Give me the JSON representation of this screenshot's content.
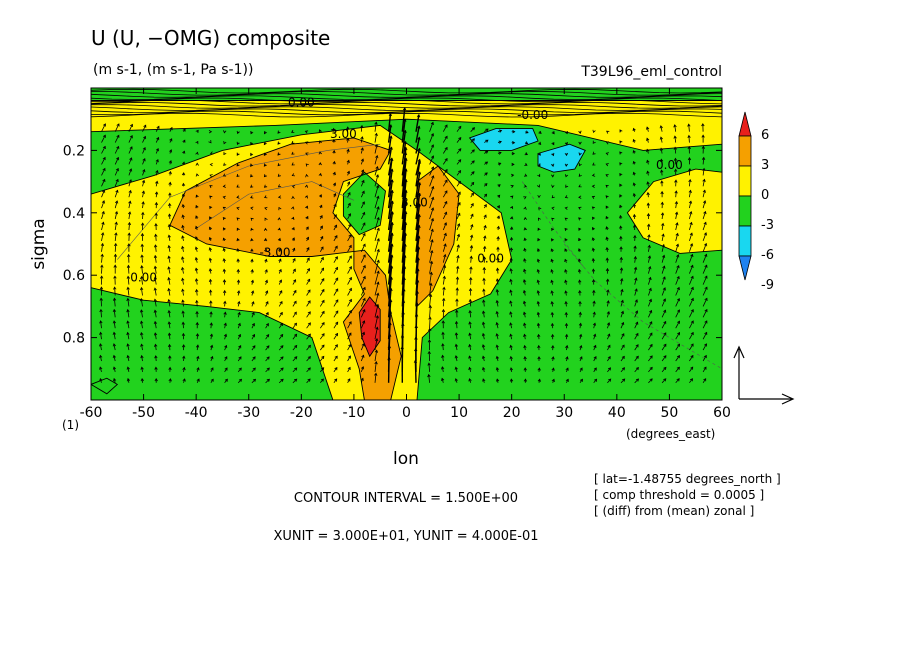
{
  "chart_data": {
    "type": "contour",
    "title": "U (U, −OMG) composite",
    "units": "(m s-1, (m s-1, Pa s-1))",
    "run_label": "T39L96_eml_control",
    "xlabel": "lon",
    "xunits": "(degrees_east)",
    "ylabel": "sigma",
    "axis_note": "(1)",
    "x_ticks": [
      -60,
      -50,
      -40,
      -30,
      -20,
      -10,
      0,
      10,
      20,
      30,
      40,
      50,
      60
    ],
    "y_ticks": [
      0.2,
      0.4,
      0.6,
      0.8
    ],
    "xlim": [
      -60,
      60
    ],
    "ylim": [
      0.0,
      1.0
    ],
    "y_inverted": true,
    "colorbar": {
      "levels": [
        6,
        3,
        0,
        -3,
        -6,
        -9
      ],
      "colors": [
        "#e8201c",
        "#f5a000",
        "#fff200",
        "#22d21e",
        "#19d7f0",
        "#1e82f0"
      ]
    },
    "contour_labels": [
      "3.00",
      "-3.00",
      "3.00",
      "0.00",
      "0.00",
      "-0.00",
      "0.00",
      "0.00"
    ],
    "footer": {
      "contour_interval": "CONTOUR INTERVAL = 1.500E+00",
      "units_line": "XUNIT = 3.000E+01, YUNIT = 4.000E-01"
    },
    "notes": [
      "[ lat=-1.48755 degrees_north ]",
      "[ comp threshold = 0.0005 ]",
      "[ (diff) from (mean) zonal ]"
    ],
    "regions": [
      {
        "level": 0,
        "points": [
          [
            -60,
            0.14
          ],
          [
            -25,
            0.12
          ],
          [
            0,
            0.1
          ],
          [
            25,
            0.12
          ],
          [
            45,
            0.2
          ],
          [
            60,
            0.18
          ],
          [
            60,
            0.04
          ],
          [
            -60,
            0.04
          ]
        ]
      },
      {
        "level": 0,
        "points": [
          [
            -60,
            0.34
          ],
          [
            -48,
            0.28
          ],
          [
            -35,
            0.2
          ],
          [
            -20,
            0.15
          ],
          [
            -5,
            0.12
          ],
          [
            2,
            0.2
          ],
          [
            10,
            0.3
          ],
          [
            18,
            0.4
          ],
          [
            20,
            0.55
          ],
          [
            16,
            0.66
          ],
          [
            8,
            0.72
          ],
          [
            3,
            0.8
          ],
          [
            2,
            1.0
          ],
          [
            -14,
            1.0
          ],
          [
            -18,
            0.8
          ],
          [
            -28,
            0.72
          ],
          [
            -38,
            0.7
          ],
          [
            -50,
            0.68
          ],
          [
            -60,
            0.64
          ]
        ]
      },
      {
        "level": 0,
        "points": [
          [
            42,
            0.4
          ],
          [
            47,
            0.3
          ],
          [
            55,
            0.26
          ],
          [
            60,
            0.27
          ],
          [
            60,
            0.52
          ],
          [
            52,
            0.53
          ],
          [
            45,
            0.48
          ]
        ]
      },
      {
        "level": 3,
        "points": [
          [
            -45,
            0.44
          ],
          [
            -42,
            0.33
          ],
          [
            -32,
            0.24
          ],
          [
            -22,
            0.18
          ],
          [
            -10,
            0.16
          ],
          [
            -3,
            0.2
          ],
          [
            -5,
            0.26
          ],
          [
            -12,
            0.3
          ],
          [
            -14,
            0.4
          ],
          [
            -10,
            0.48
          ],
          [
            -10,
            0.58
          ],
          [
            -8,
            0.66
          ],
          [
            -12,
            0.75
          ],
          [
            -9,
            0.9
          ],
          [
            -8,
            1.0
          ],
          [
            -3,
            1.0
          ],
          [
            -1,
            0.86
          ],
          [
            -3,
            0.72
          ],
          [
            -4,
            0.6
          ],
          [
            -8,
            0.52
          ],
          [
            -18,
            0.54
          ],
          [
            -26,
            0.54
          ],
          [
            -38,
            0.5
          ]
        ]
      },
      {
        "level": 3,
        "points": [
          [
            2,
            0.3
          ],
          [
            6,
            0.25
          ],
          [
            10,
            0.34
          ],
          [
            9,
            0.5
          ],
          [
            5,
            0.65
          ],
          [
            2,
            0.7
          ]
        ]
      },
      {
        "level": 6,
        "points": [
          [
            -9,
            0.72
          ],
          [
            -7,
            0.67
          ],
          [
            -5,
            0.71
          ],
          [
            -5,
            0.81
          ],
          [
            -7,
            0.86
          ],
          [
            -8.5,
            0.8
          ]
        ]
      },
      {
        "level": -3,
        "points": [
          [
            -12,
            0.34
          ],
          [
            -8,
            0.27
          ],
          [
            -4,
            0.33
          ],
          [
            -5,
            0.44
          ],
          [
            -9,
            0.47
          ],
          [
            -12,
            0.41
          ]
        ]
      },
      {
        "level": -3,
        "points": [
          [
            -60,
            0.95
          ],
          [
            -57,
            0.93
          ],
          [
            -55,
            0.95
          ],
          [
            -57,
            0.98
          ]
        ]
      },
      {
        "level": -6,
        "points": [
          [
            12,
            0.16
          ],
          [
            17,
            0.13
          ],
          [
            24,
            0.13
          ],
          [
            25,
            0.17
          ],
          [
            20,
            0.2
          ],
          [
            14,
            0.2
          ]
        ]
      },
      {
        "level": -6,
        "points": [
          [
            25,
            0.21
          ],
          [
            31,
            0.18
          ],
          [
            34,
            0.2
          ],
          [
            32,
            0.26
          ],
          [
            28,
            0.27
          ],
          [
            25,
            0.25
          ]
        ]
      }
    ]
  }
}
